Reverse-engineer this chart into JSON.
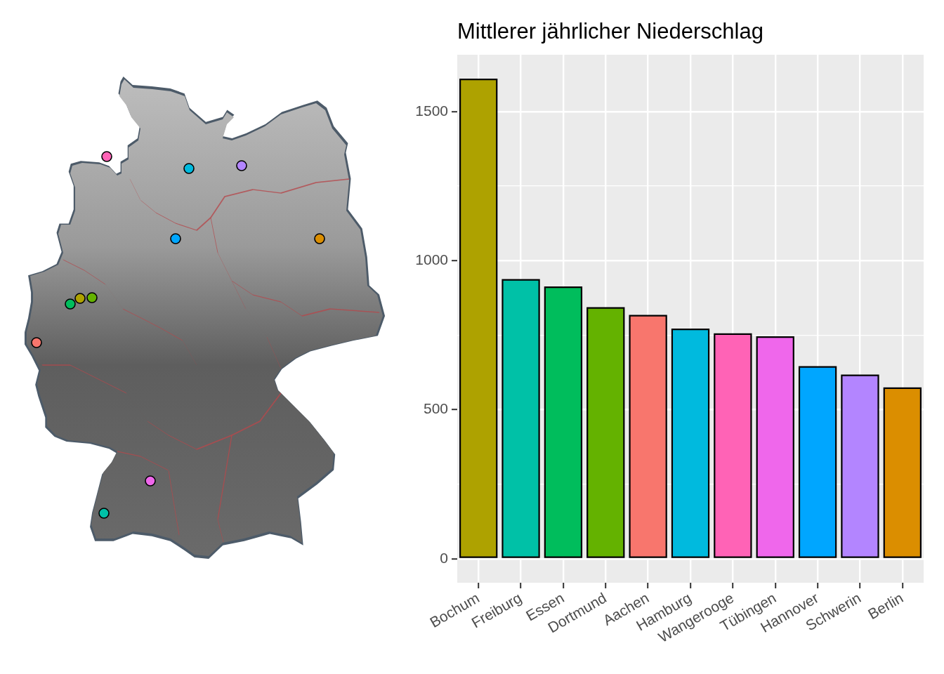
{
  "chart_data": {
    "type": "bar",
    "title": "Mittlerer jährlicher Niederschlag",
    "categories": [
      "Bochum",
      "Freiburg",
      "Essen",
      "Dortmund",
      "Aachen",
      "Hamburg",
      "Wangerooge",
      "Tübingen",
      "Hannover",
      "Schwerin",
      "Berlin"
    ],
    "values": [
      1610,
      938,
      913,
      844,
      818,
      772,
      756,
      746,
      646,
      618,
      575
    ],
    "colors": [
      "#aea200",
      "#00c1a7",
      "#00bd5c",
      "#64b200",
      "#f8766d",
      "#00bade",
      "#ff63b6",
      "#ef67eb",
      "#00a6ff",
      "#b385ff",
      "#db8e00"
    ],
    "ylim": [
      -80,
      1690
    ],
    "yticks": [
      0,
      {
        "value": 250,
        "label": null
      },
      500,
      {
        "value": 750,
        "label": null
      },
      1000,
      {
        "value": 1250,
        "label": null
      },
      1500
    ],
    "grid": true
  }
}
